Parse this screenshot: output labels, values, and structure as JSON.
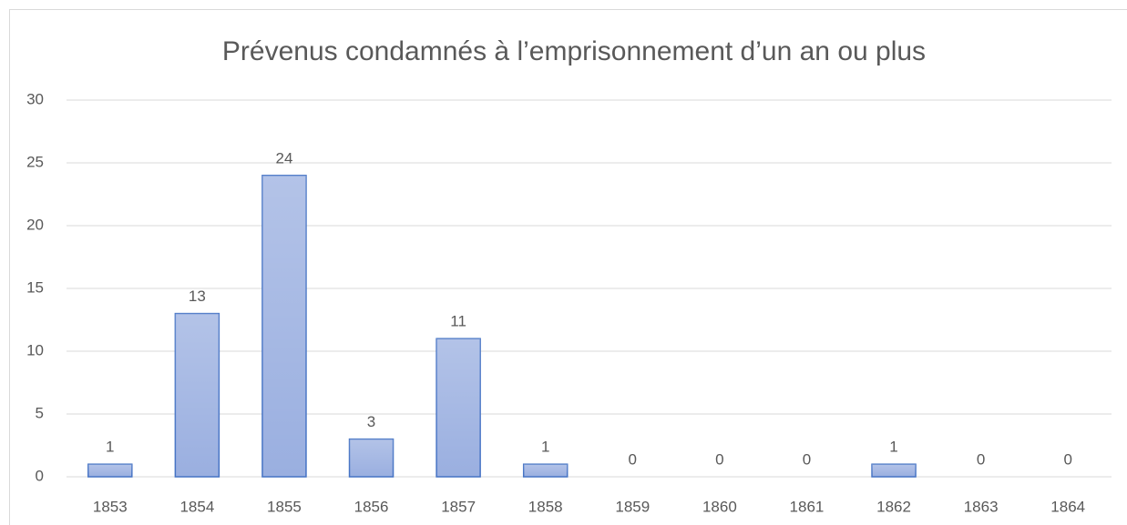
{
  "chart_data": {
    "type": "bar",
    "title": "Prévenus condamnés à l’emprisonnement d’un an ou plus",
    "categories": [
      "1853",
      "1854",
      "1855",
      "1856",
      "1857",
      "1858",
      "1859",
      "1860",
      "1861",
      "1862",
      "1863",
      "1864"
    ],
    "values": [
      1,
      13,
      24,
      3,
      11,
      1,
      0,
      0,
      0,
      1,
      0,
      0
    ],
    "color": "#9aafe0",
    "edge_color": "#4472c4",
    "ylim": [
      0,
      30
    ],
    "yticks": [
      0,
      5,
      10,
      15,
      20,
      25,
      30
    ],
    "grid": true
  }
}
